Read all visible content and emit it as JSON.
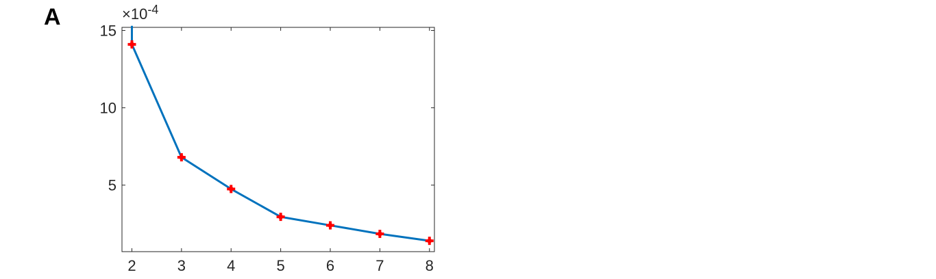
{
  "panel_label": "A",
  "colors": {
    "line": "#0072BD",
    "marker": "#FF0000",
    "axis": "#262626"
  },
  "chart_data": {
    "type": "line",
    "title": "",
    "xlabel": "",
    "ylabel": "",
    "exponent_label": "×10-4",
    "x": [
      2,
      3,
      4,
      5,
      6,
      7,
      8
    ],
    "series": [
      {
        "values": [
          14.1,
          6.8,
          4.75,
          2.95,
          2.4,
          1.85,
          1.4
        ],
        "marker": "plus"
      }
    ],
    "line_start": {
      "x": 2,
      "y": 15.3
    },
    "xlim": [
      1.8,
      8.1
    ],
    "ylim": [
      0.7,
      15.2
    ],
    "xticks": [
      2,
      3,
      4,
      5,
      6,
      7,
      8
    ],
    "yticks": [
      5,
      10,
      15
    ],
    "grid": false,
    "box": true
  }
}
